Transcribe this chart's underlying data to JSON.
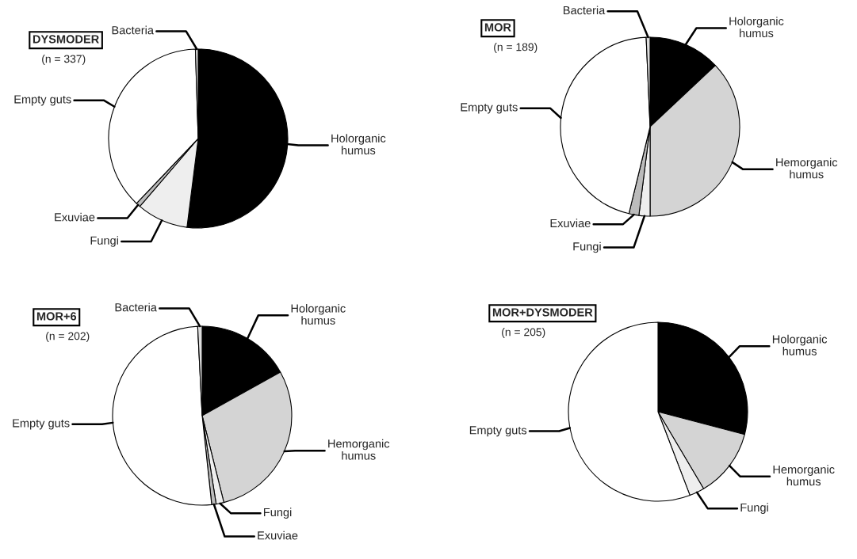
{
  "chart_data": [
    {
      "type": "pie",
      "title": "DYSMODER",
      "subtitle": "(n = 337)",
      "categories": [
        "Holorganic\nhumus",
        "Fungi",
        "Exuviae",
        "Empty guts",
        "Bacteria"
      ],
      "values": [
        52,
        9.3,
        0.8,
        37.4,
        0.5
      ],
      "colors": [
        "#000000",
        "#eeeeee",
        "#bbbbbb",
        "#ffffff",
        "#dddddd"
      ]
    },
    {
      "type": "pie",
      "title": "MOR",
      "subtitle": "(n = 189)",
      "categories": [
        "Holorganic\nhumus",
        "Hemorganic\nhumus",
        "Fungi",
        "Exuviae",
        "Empty guts",
        "Bacteria"
      ],
      "values": [
        13,
        37,
        2,
        1.8,
        45.5,
        0.7
      ],
      "colors": [
        "#000000",
        "#d4d4d4",
        "#eeeeee",
        "#bbbbbb",
        "#ffffff",
        "#dddddd"
      ]
    },
    {
      "type": "pie",
      "title": "MOR+6",
      "subtitle": "(n = 202)",
      "categories": [
        "Holorganic\nhumus",
        "Hemorganic\nhumus",
        "Fungi",
        "Exuviae",
        "Empty guts",
        "Bacteria"
      ],
      "values": [
        16.9,
        29.2,
        1.4,
        0.8,
        50.9,
        0.8
      ],
      "colors": [
        "#000000",
        "#d4d4d4",
        "#eeeeee",
        "#bbbbbb",
        "#ffffff",
        "#dddddd"
      ]
    },
    {
      "type": "pie",
      "title": "MOR+DYSMODER",
      "subtitle": "(n = 205)",
      "categories": [
        "Holorganic\nhumus",
        "Hemorganic\nhumus",
        "Fungi",
        "Empty guts"
      ],
      "values": [
        29.1,
        12.4,
        2.7,
        55.8
      ],
      "colors": [
        "#000000",
        "#d4d4d4",
        "#eeeeee",
        "#ffffff"
      ]
    }
  ]
}
